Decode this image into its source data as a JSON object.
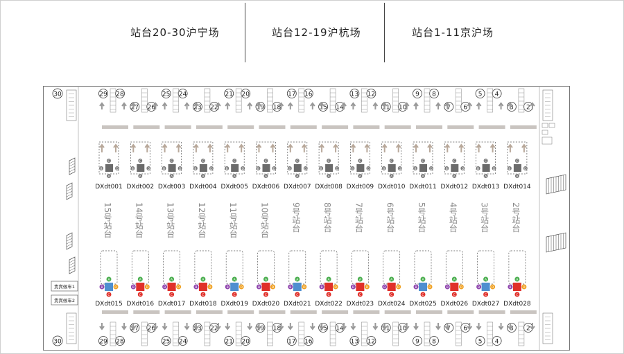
{
  "zones": [
    {
      "label": "站台20-30沪宁场"
    },
    {
      "label": "站台12-19沪杭场"
    },
    {
      "label": "站台1-11京沪场"
    }
  ],
  "platform_numbers": [
    "29",
    "28",
    "27",
    "26",
    "25",
    "24",
    "23",
    "22",
    "21",
    "20",
    "19",
    "18",
    "17",
    "16",
    "15",
    "14",
    "13",
    "12",
    "11",
    "10",
    "9",
    "8",
    "7",
    "6",
    "5",
    "4",
    "3",
    "2"
  ],
  "corner_platform": "30",
  "upper_devices": [
    "DXdt001",
    "DXdt002",
    "DXdt003",
    "DXdt004",
    "DXdt005",
    "DXdt006",
    "DXdt007",
    "DXdt008",
    "DXdt009",
    "DXdt010",
    "DXdt011",
    "DXdt012",
    "DXdt013",
    "DXdt014"
  ],
  "lower_devices": [
    "DXdt015",
    "DXdt016",
    "DXdt017",
    "DXdt018",
    "DXdt019",
    "DXdt020",
    "DXdt021",
    "DXdt022",
    "DXdt023",
    "DXdt024",
    "DXdt025",
    "DXdt026",
    "DXdt027",
    "DXdt028"
  ],
  "platforms": [
    "15号站台",
    "14号站台",
    "13号站台",
    "12号站台",
    "11号站台",
    "10号站台",
    "9号站台",
    "8号站台",
    "7号站台",
    "6号站台",
    "5号站台",
    "4号站台",
    "3号站台",
    "2号站台"
  ],
  "vip_labels": [
    "贵宾候车1",
    "贵宾候车2"
  ],
  "lower_colors": [
    "#4f8fd0",
    "#e0302a",
    "#e0302a",
    "#e0302a",
    "#4f8fd0",
    "#e0302a",
    "#4f8fd0",
    "#e0302a",
    "#e0302a",
    "#e0302a",
    "#4f8fd0",
    "#e0302a",
    "#4f8fd0",
    "#e0302a"
  ],
  "colors": {
    "gray_box": "#6b6b6b",
    "blue": "#4f8fd0",
    "red": "#e0302a",
    "green": "#4caf50",
    "purple": "#8e44ad",
    "orange": "#f0a020"
  }
}
